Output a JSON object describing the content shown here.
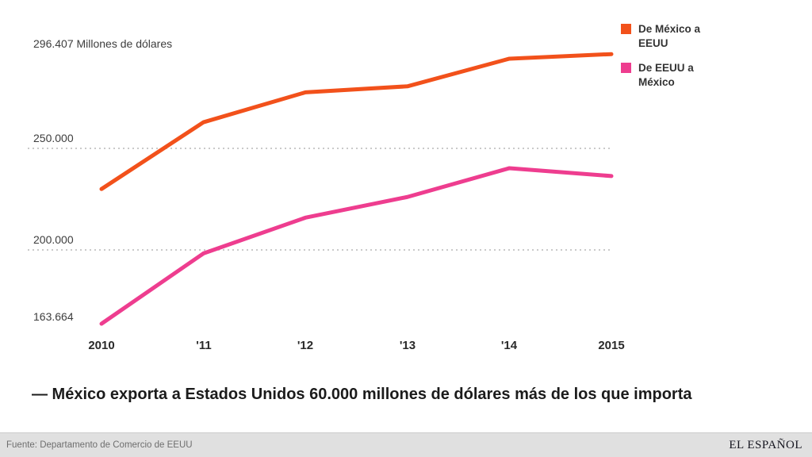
{
  "chart_data": {
    "type": "line",
    "x": [
      "2010",
      "'11",
      "'12",
      "'13",
      "'14",
      "2015"
    ],
    "series": [
      {
        "name": "De México a EEUU",
        "color": "#f2511b",
        "values": [
          229986,
          262874,
          277594,
          280556,
          294157,
          296407
        ]
      },
      {
        "name": "De EEUU a México",
        "color": "#ee3d8f",
        "values": [
          163664,
          198289,
          215875,
          226079,
          240249,
          236377
        ]
      }
    ],
    "y_top_label": "296.407 Millones de dólares",
    "y_gridline_labels": [
      "250.000",
      "200.000"
    ],
    "y_bottom_label": "163.664",
    "gridlines_at": [
      250000,
      200000
    ],
    "ylim": [
      155000,
      305000
    ],
    "grid": "dotted-horizontal",
    "legend_position": "top-right",
    "title": "",
    "xlabel": "",
    "ylabel": "Millones de dólares"
  },
  "legend": {
    "items": [
      {
        "label": "De México a EEUU",
        "color": "#f2511b"
      },
      {
        "label": "De EEUU a México",
        "color": "#ee3d8f"
      }
    ]
  },
  "caption": "— México exporta a Estados Unidos 60.000 millones de dólares más de los que importa",
  "footer": {
    "source": "Fuente: Departamento de Comercio de EEUU",
    "brand": "EL ESPAÑOL"
  }
}
